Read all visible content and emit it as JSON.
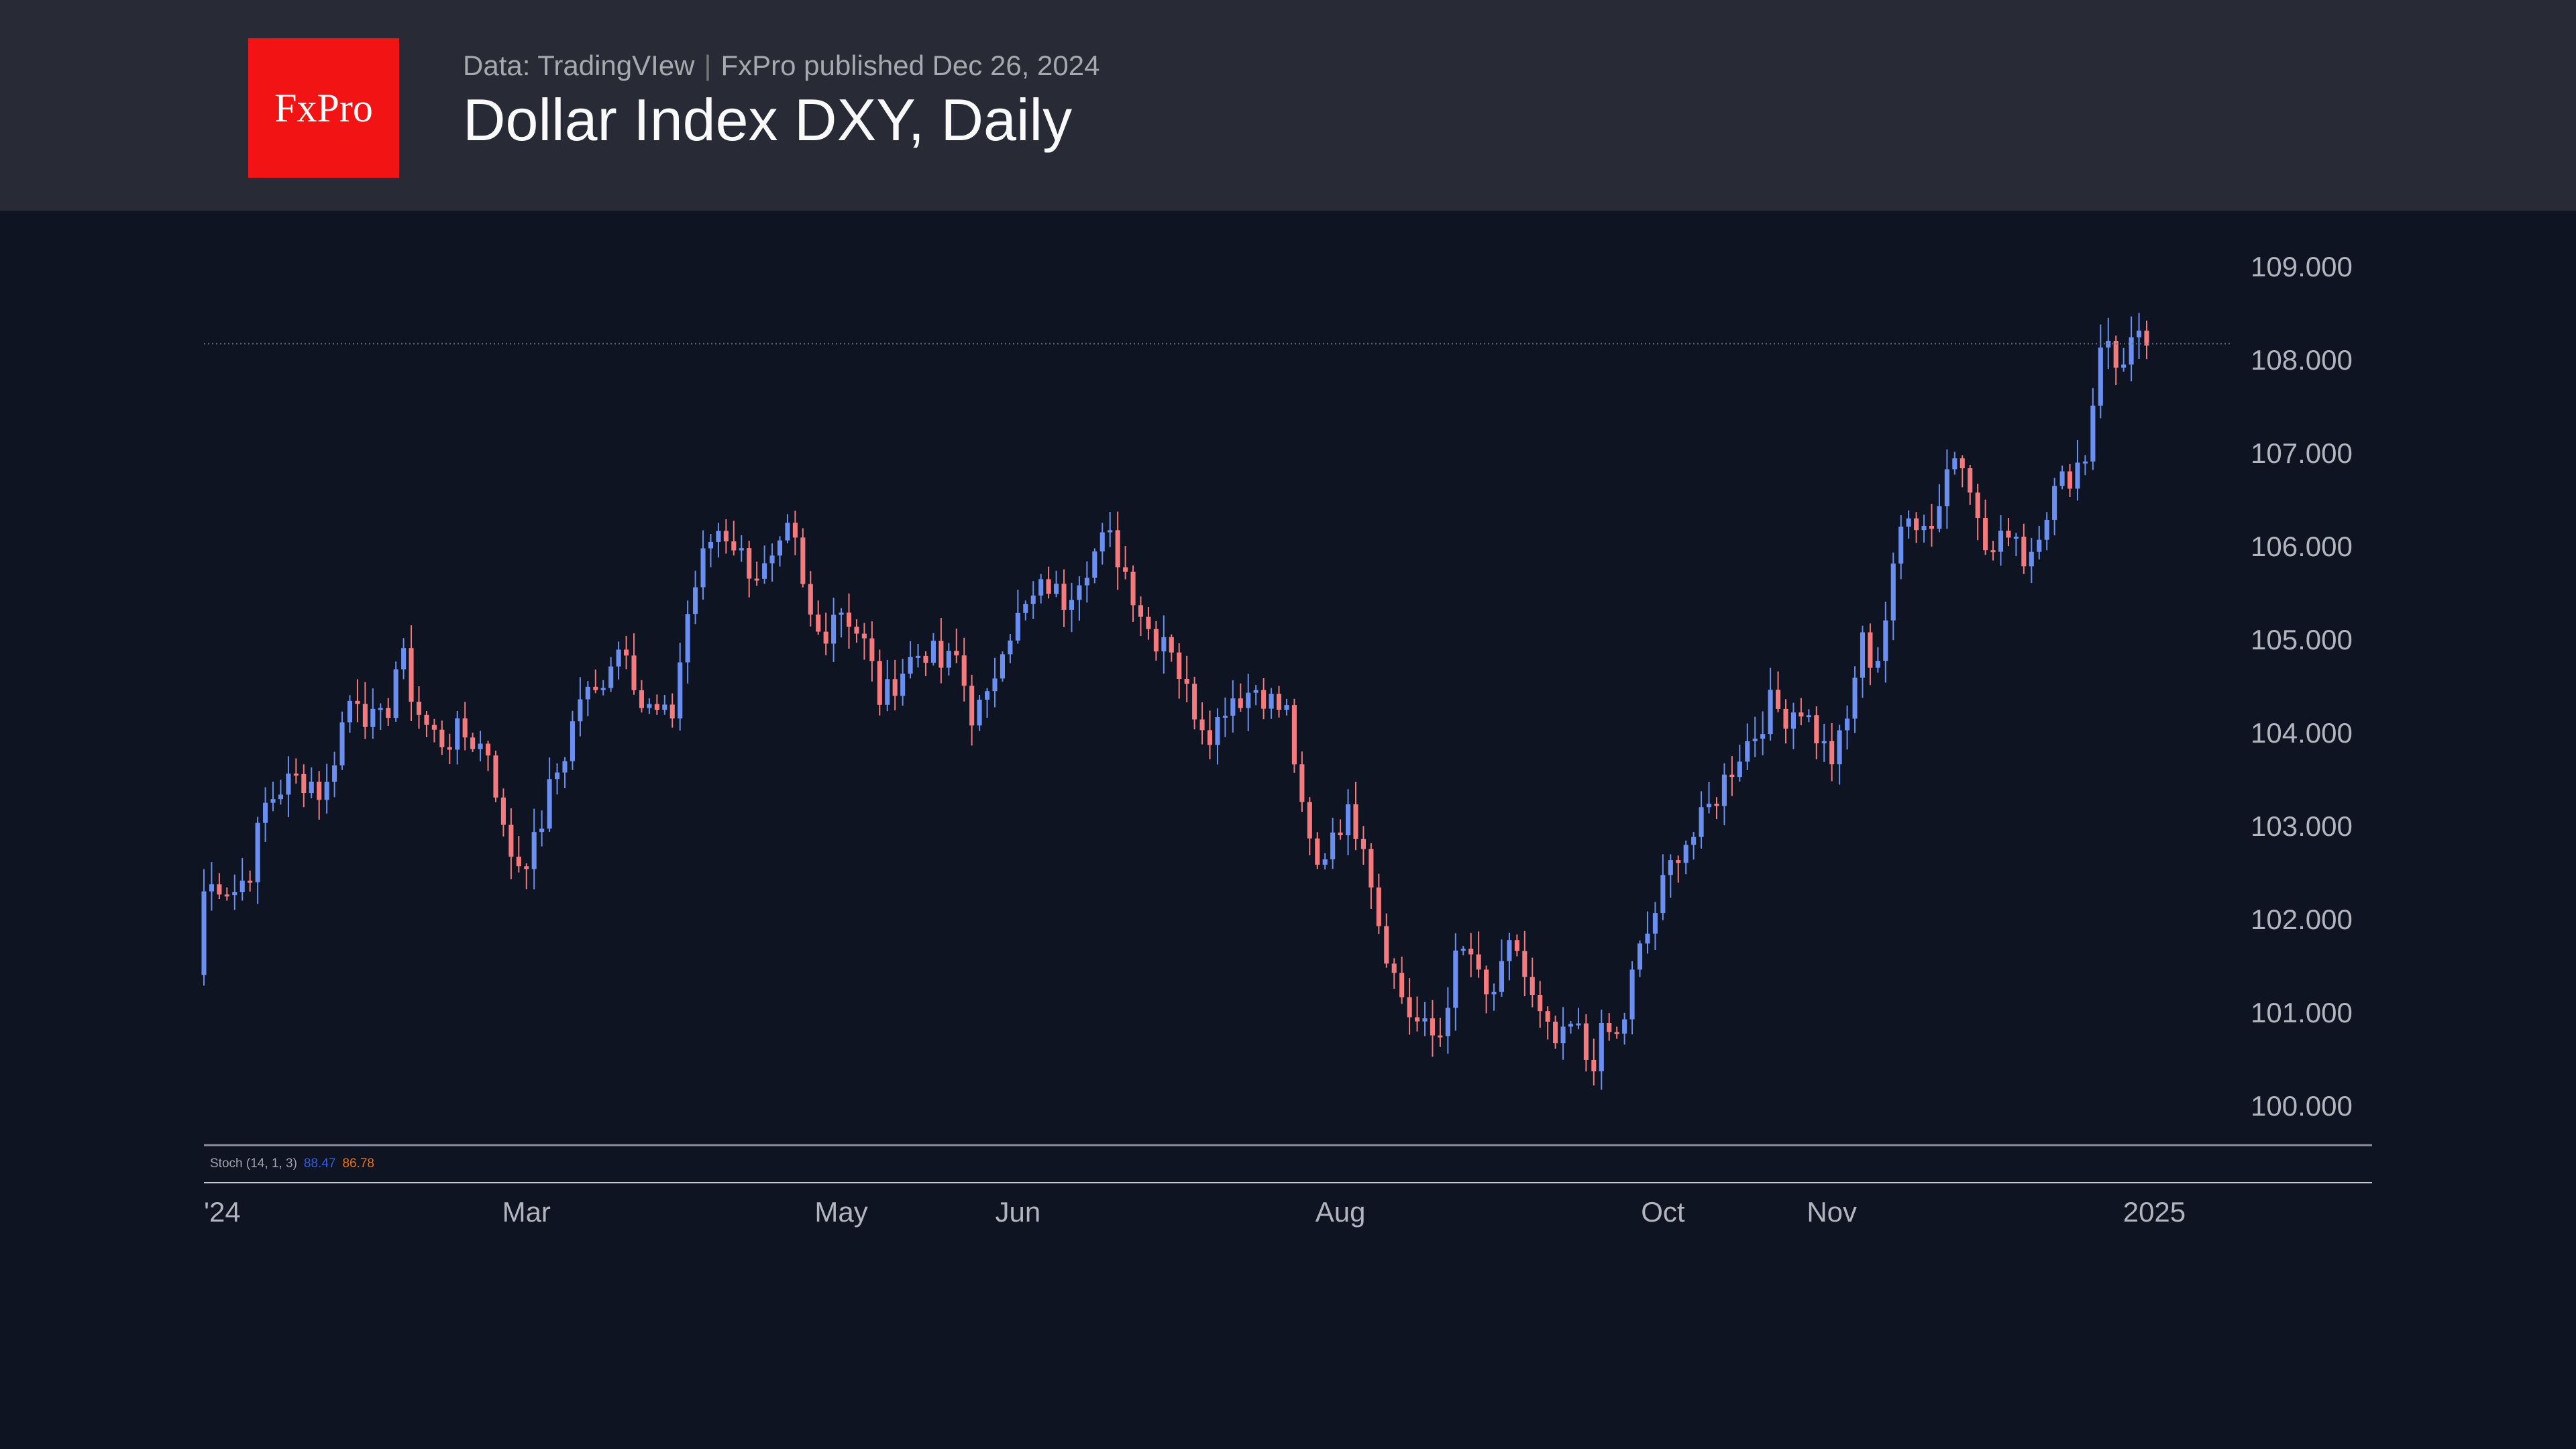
{
  "header": {
    "logo_text": "FxPro",
    "source": "Data: TradingVIew",
    "published": "FxPro published Dec 26, 2024",
    "title": "Dollar Index DXY, Daily"
  },
  "colors": {
    "up": "#6b8ff0",
    "down": "#f47a7e",
    "stoch_k": "#2f5fe0",
    "stoch_d": "#f07010"
  },
  "stoch": {
    "label": "Stoch (14, 1, 3)",
    "k": "88.47",
    "d": "86.78"
  },
  "chart_data": {
    "type": "candlestick",
    "title": "Dollar Index DXY, Daily",
    "y_ticks": [
      "109.000",
      "108.000",
      "107.000",
      "106.000",
      "105.000",
      "104.000",
      "103.000",
      "102.000",
      "101.000",
      "100.000"
    ],
    "y_tick_values": [
      109,
      108,
      107,
      106,
      105,
      104,
      103,
      102,
      101,
      100
    ],
    "ylim": [
      100,
      109
    ],
    "x_labels": [
      "'24",
      "Mar",
      "May",
      "Jun",
      "Aug",
      "Oct",
      "Nov",
      "2025"
    ],
    "x_label_positions_bar_index": [
      1,
      42,
      83,
      106,
      148,
      190,
      212,
      254
    ],
    "bar_count": 254,
    "last_price_line": 108.17,
    "first_open": 101.4,
    "approx_closes": [
      102.3,
      102.4,
      102.3,
      102.5,
      103.2,
      103.4,
      103.5,
      103.5,
      103.3,
      104.0,
      104.5,
      104.1,
      104.1,
      104.9,
      104.3,
      104.0,
      103.9,
      104.0,
      103.9,
      103.8,
      102.8,
      102.6,
      102.8,
      103.4,
      103.8,
      104.4,
      104.4,
      104.8,
      105.0,
      104.3,
      104.2,
      104.1,
      105.2,
      105.8,
      106.2,
      106.1,
      105.8,
      105.7,
      105.8,
      106.2,
      105.3,
      105.0,
      105.4,
      105.2,
      104.9,
      104.3,
      104.6,
      104.8,
      104.9,
      104.7,
      104.8,
      104.2,
      104.3,
      105.0,
      105.2,
      105.4,
      105.6,
      105.4,
      105.7,
      105.9,
      106.1,
      105.8,
      105.4,
      105.0,
      105.1,
      104.5,
      104.2,
      104.0,
      104.4,
      104.4,
      104.5,
      104.3,
      104.2,
      103.0,
      102.5,
      103.0,
      103.1,
      102.9,
      102.0,
      101.4,
      101.0,
      100.8,
      100.7,
      101.5,
      101.7,
      101.1,
      101.3,
      101.8,
      101.2,
      100.8,
      100.6,
      100.9,
      100.4,
      100.8,
      100.7,
      101.5,
      101.9,
      102.4,
      102.8,
      102.9,
      103.2,
      103.5,
      103.8,
      104.0,
      104.3,
      104.2,
      104.3,
      104.0,
      103.7,
      104.0,
      105.0,
      104.7,
      105.5,
      106.5,
      106.2,
      106.3,
      107.0,
      107.0,
      106.0,
      105.9,
      106.3,
      105.8,
      106.3,
      106.6,
      106.8,
      107.0,
      108.3,
      107.9,
      108.2,
      108.15
    ]
  }
}
